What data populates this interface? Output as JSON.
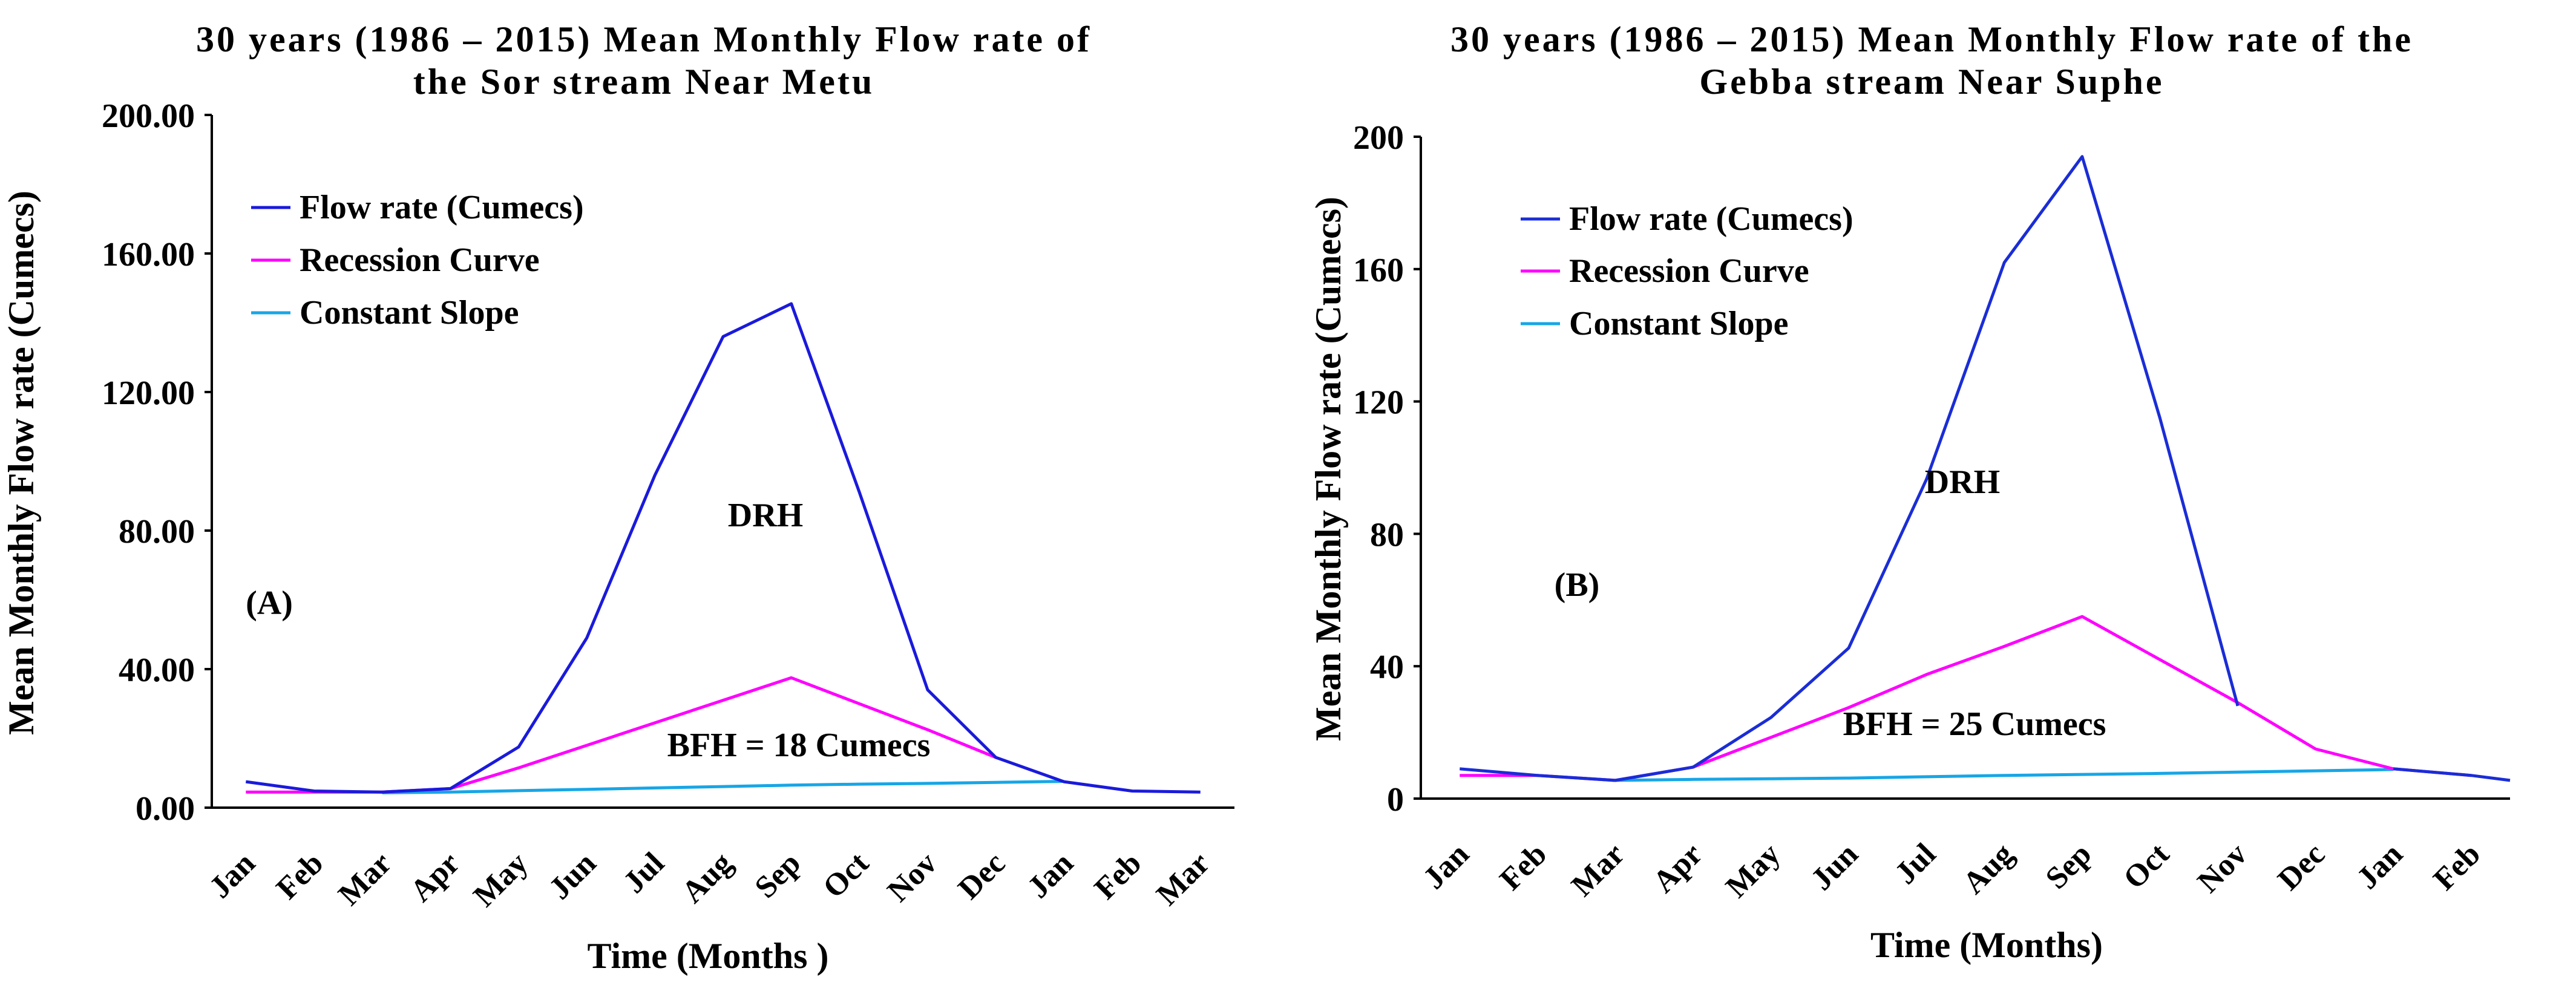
{
  "chart_data": [
    {
      "type": "line",
      "title_line1": "30 years (1986 – 2015) Mean Monthly Flow rate of",
      "title_line2": "the Sor stream Near Metu",
      "xlabel": "Time (Months )",
      "ylabel": "Mean Monthly Flow rate (Cumecs)",
      "ylim": [
        0,
        200
      ],
      "yticks": [
        0,
        40,
        80,
        120,
        160,
        200
      ],
      "ytick_labels": [
        "0.00",
        "40.00",
        "80.00",
        "120.00",
        "160.00",
        "200.00"
      ],
      "categories": [
        "Jan",
        "Feb",
        "Mar",
        "Apr",
        "May",
        "Jun",
        "Jul",
        "Aug",
        "Sep",
        "Oct",
        "Nov",
        "Dec",
        "Jan",
        "Feb",
        "Mar"
      ],
      "series": [
        {
          "name": "Flow rate (Cumecs)",
          "color": "#1a1adc",
          "values": [
            7.5,
            4.8,
            4.5,
            5.5,
            17.5,
            49,
            96,
            136,
            145.5,
            91,
            34,
            14.5,
            7.5,
            4.8,
            4.5
          ]
        },
        {
          "name": "Recession Curve",
          "color": "#ff00ff",
          "values": [
            4.5,
            4.5,
            4.5,
            5.5,
            11.5,
            18,
            24.5,
            31,
            37.5,
            30,
            22.5,
            14.5,
            null,
            null,
            null
          ]
        },
        {
          "name": "Constant Slope",
          "color": "#17a6e6",
          "values": [
            null,
            null,
            4.3,
            4.5,
            4.9,
            5.3,
            5.7,
            6.1,
            6.5,
            6.8,
            7.0,
            7.3,
            7.6,
            null,
            null
          ]
        }
      ],
      "panel_label": "(A)",
      "annotations": [
        "DRH",
        "BFH = 18 Cumecs"
      ]
    },
    {
      "type": "line",
      "title_line1": "30 years (1986 – 2015) Mean Monthly Flow rate of the",
      "title_line2": "Gebba stream Near Suphe",
      "xlabel": "Time (Months)",
      "ylabel": "Mean Monthly Flow rate (Cumecs)",
      "ylim": [
        0,
        200
      ],
      "yticks": [
        0,
        40,
        80,
        120,
        160,
        200
      ],
      "ytick_labels": [
        "0",
        "40",
        "80",
        "120",
        "160",
        "200"
      ],
      "categories": [
        "Jan",
        "Feb",
        "Mar",
        "Apr",
        "May",
        "Jun",
        "Jul",
        "Aug",
        "Sep",
        "Oct",
        "Nov",
        "Dec",
        "Jan",
        "Feb"
      ],
      "series": [
        {
          "name": "Flow rate (Cumecs)",
          "color": "#1a2dd6",
          "values": [
            9,
            7,
            5.5,
            9.5,
            24.5,
            45.5,
            96.5,
            162,
            194,
            115,
            28,
            null,
            null,
            null
          ]
        },
        {
          "name": "Recession Curve",
          "color": "#ff00ff",
          "values": [
            7,
            7,
            5.5,
            9.5,
            18.5,
            27.5,
            37.5,
            46,
            55,
            42,
            29,
            15,
            9,
            7
          ]
        },
        {
          "name": "Constant Slope",
          "color": "#17a6e6",
          "values": [
            null,
            null,
            5.5,
            5.8,
            6.0,
            6.2,
            6.6,
            7.0,
            7.3,
            7.6,
            8.0,
            8.4,
            8.8,
            null
          ]
        }
      ],
      "extra_series": {
        "color": "#1a2dd6",
        "x_end": 14.5,
        "values": [
          9,
          7,
          5.5
        ]
      },
      "panel_label": "(B)",
      "annotations": [
        "DRH",
        "BFH = 25 Cumecs"
      ]
    }
  ]
}
